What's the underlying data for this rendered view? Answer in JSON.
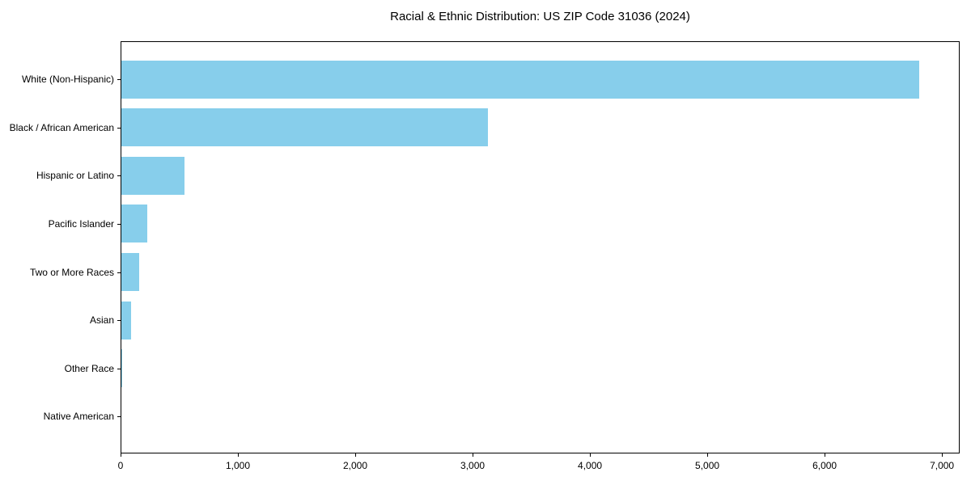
{
  "chart_data": {
    "type": "bar",
    "orientation": "horizontal",
    "title": "Racial & Ethnic Distribution: US ZIP Code 31036 (2024)",
    "categories": [
      "White (Non-Hispanic)",
      "Black / African American",
      "Hispanic or Latino",
      "Pacific Islander",
      "Two or More Races",
      "Asian",
      "Other Race",
      "Native American"
    ],
    "values": [
      6805,
      3130,
      535,
      220,
      150,
      85,
      10,
      0
    ],
    "bar_color": "#87CEEB",
    "background_color": "#FFFFFF",
    "spine_color": "#000000",
    "x_ticks": [
      {
        "value": 0,
        "label": "0"
      },
      {
        "value": 1000,
        "label": "1,000"
      },
      {
        "value": 2000,
        "label": "2,000"
      },
      {
        "value": 3000,
        "label": "3,000"
      },
      {
        "value": 4000,
        "label": "4,000"
      },
      {
        "value": 5000,
        "label": "5,000"
      },
      {
        "value": 6000,
        "label": "6,000"
      },
      {
        "value": 7000,
        "label": "7,000"
      }
    ],
    "xlim": [
      0,
      7151
    ],
    "xlabel": "",
    "ylabel": "",
    "grid": false,
    "legend": null
  }
}
